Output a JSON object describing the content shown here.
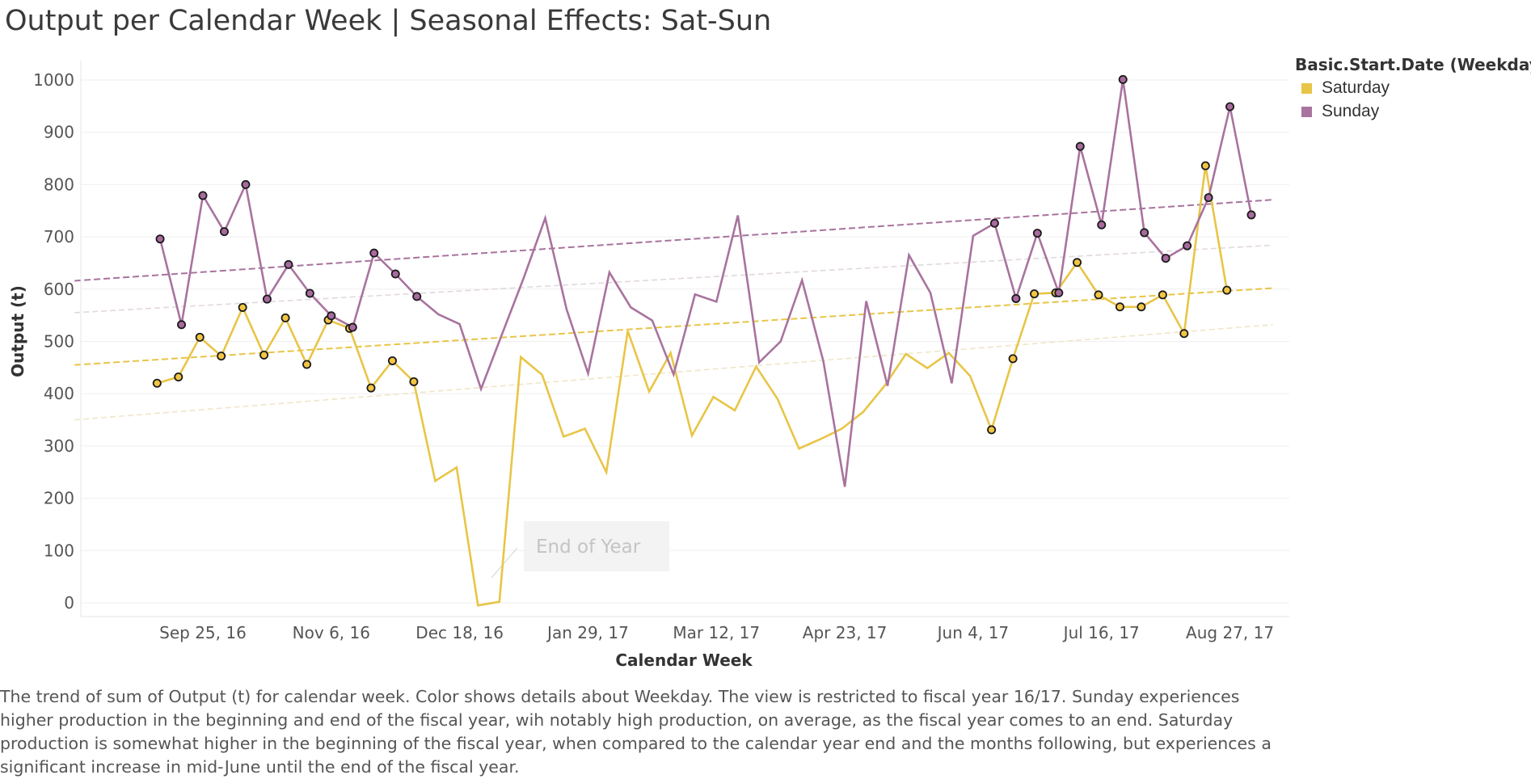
{
  "chart_data": {
    "type": "line",
    "title": "Output per Calendar Week | Seasonal Effects: Sat-Sun",
    "xlabel": "Calendar Week",
    "ylabel": "Output (t)",
    "ylim": [
      0,
      1000
    ],
    "y_ticks": [
      0,
      100,
      200,
      300,
      400,
      500,
      600,
      700,
      800,
      900,
      1000
    ],
    "x_tick_labels": [
      "Sep 25, 16",
      "Nov 6, 16",
      "Dec 18, 16",
      "Jan 29, 17",
      "Mar 12, 17",
      "Apr 23, 17",
      "Jun 4, 17",
      "Jul 16, 17",
      "Aug 27, 17"
    ],
    "x_start": "2016-09-04",
    "x_end": "2017-09-03",
    "grid": "horizontal",
    "legend": {
      "title": "Basic.Start.Date (Weekdays)",
      "position": "top-right",
      "entries": [
        "Saturday",
        "Sunday"
      ]
    },
    "annotation": "End of Year",
    "series": [
      {
        "name": "Saturday",
        "color": "#E8C547",
        "marker_color": "#F2C542",
        "trend_color": "#E8C547",
        "trend_band_color": "#EFE6C8",
        "trend": {
          "start": [
            "2016-08-14",
            455
          ],
          "end": [
            "2017-09-10",
            602
          ]
        },
        "trend_band_lower": {
          "start": [
            "2016-08-14",
            350
          ],
          "end": [
            "2017-09-10",
            532
          ]
        },
        "points": [
          {
            "x": "2016-09-10",
            "y": 420,
            "marker": true
          },
          {
            "x": "2016-09-17",
            "y": 432,
            "marker": true
          },
          {
            "x": "2016-09-24",
            "y": 508,
            "marker": true
          },
          {
            "x": "2016-10-01",
            "y": 472,
            "marker": true
          },
          {
            "x": "2016-10-08",
            "y": 565,
            "marker": true
          },
          {
            "x": "2016-10-15",
            "y": 474,
            "marker": true
          },
          {
            "x": "2016-10-22",
            "y": 545,
            "marker": true
          },
          {
            "x": "2016-10-29",
            "y": 456,
            "marker": true
          },
          {
            "x": "2016-11-05",
            "y": 541,
            "marker": true
          },
          {
            "x": "2016-11-12",
            "y": 525,
            "marker": true
          },
          {
            "x": "2016-11-19",
            "y": 411,
            "marker": true
          },
          {
            "x": "2016-11-26",
            "y": 463,
            "marker": true
          },
          {
            "x": "2016-12-03",
            "y": 423,
            "marker": true
          },
          {
            "x": "2016-12-10",
            "y": 233,
            "marker": false
          },
          {
            "x": "2016-12-17",
            "y": 259,
            "marker": false
          },
          {
            "x": "2016-12-24",
            "y": -5,
            "marker": false
          },
          {
            "x": "2016-12-31",
            "y": 2,
            "marker": false
          },
          {
            "x": "2017-01-07",
            "y": 470,
            "marker": false
          },
          {
            "x": "2017-01-14",
            "y": 436,
            "marker": false
          },
          {
            "x": "2017-01-21",
            "y": 318,
            "marker": false
          },
          {
            "x": "2017-01-28",
            "y": 333,
            "marker": false
          },
          {
            "x": "2017-02-04",
            "y": 250,
            "marker": false
          },
          {
            "x": "2017-02-11",
            "y": 520,
            "marker": false
          },
          {
            "x": "2017-02-18",
            "y": 404,
            "marker": false
          },
          {
            "x": "2017-02-25",
            "y": 478,
            "marker": false
          },
          {
            "x": "2017-03-04",
            "y": 320,
            "marker": false
          },
          {
            "x": "2017-03-11",
            "y": 394,
            "marker": false
          },
          {
            "x": "2017-03-18",
            "y": 368,
            "marker": false
          },
          {
            "x": "2017-03-25",
            "y": 452,
            "marker": false
          },
          {
            "x": "2017-04-01",
            "y": 390,
            "marker": false
          },
          {
            "x": "2017-04-08",
            "y": 295,
            "marker": false
          },
          {
            "x": "2017-04-15",
            "y": 313,
            "marker": false
          },
          {
            "x": "2017-04-22",
            "y": 333,
            "marker": false
          },
          {
            "x": "2017-04-29",
            "y": 365,
            "marker": false
          },
          {
            "x": "2017-05-06",
            "y": 415,
            "marker": false
          },
          {
            "x": "2017-05-13",
            "y": 476,
            "marker": false
          },
          {
            "x": "2017-05-20",
            "y": 449,
            "marker": false
          },
          {
            "x": "2017-05-27",
            "y": 478,
            "marker": false
          },
          {
            "x": "2017-06-03",
            "y": 434,
            "marker": false
          },
          {
            "x": "2017-06-10",
            "y": 331,
            "marker": true
          },
          {
            "x": "2017-06-17",
            "y": 467,
            "marker": true
          },
          {
            "x": "2017-06-24",
            "y": 591,
            "marker": true
          },
          {
            "x": "2017-07-01",
            "y": 593,
            "marker": true
          },
          {
            "x": "2017-07-08",
            "y": 651,
            "marker": true
          },
          {
            "x": "2017-07-15",
            "y": 589,
            "marker": true
          },
          {
            "x": "2017-07-22",
            "y": 566,
            "marker": true
          },
          {
            "x": "2017-07-29",
            "y": 566,
            "marker": true
          },
          {
            "x": "2017-08-05",
            "y": 589,
            "marker": true
          },
          {
            "x": "2017-08-12",
            "y": 515,
            "marker": true
          },
          {
            "x": "2017-08-19",
            "y": 836,
            "marker": true
          },
          {
            "x": "2017-08-26",
            "y": 598,
            "marker": true
          }
        ]
      },
      {
        "name": "Sunday",
        "color": "#A8739E",
        "marker_color": "#A86A9E",
        "trend_color": "#A8739E",
        "trend_band_color": "#E2D8E0",
        "trend": {
          "start": [
            "2016-08-14",
            616
          ],
          "end": [
            "2017-09-10",
            771
          ]
        },
        "trend_band_lower": {
          "start": [
            "2016-08-14",
            555
          ],
          "end": [
            "2017-09-10",
            684
          ]
        },
        "points": [
          {
            "x": "2016-09-11",
            "y": 696,
            "marker": true
          },
          {
            "x": "2016-09-18",
            "y": 532,
            "marker": true
          },
          {
            "x": "2016-09-25",
            "y": 779,
            "marker": true
          },
          {
            "x": "2016-10-02",
            "y": 710,
            "marker": true
          },
          {
            "x": "2016-10-09",
            "y": 800,
            "marker": true
          },
          {
            "x": "2016-10-16",
            "y": 581,
            "marker": true
          },
          {
            "x": "2016-10-23",
            "y": 647,
            "marker": true
          },
          {
            "x": "2016-10-30",
            "y": 592,
            "marker": true
          },
          {
            "x": "2016-11-06",
            "y": 549,
            "marker": true
          },
          {
            "x": "2016-11-13",
            "y": 527,
            "marker": true
          },
          {
            "x": "2016-11-20",
            "y": 669,
            "marker": true
          },
          {
            "x": "2016-11-27",
            "y": 629,
            "marker": true
          },
          {
            "x": "2016-12-04",
            "y": 586,
            "marker": true
          },
          {
            "x": "2016-12-11",
            "y": 552,
            "marker": false
          },
          {
            "x": "2016-12-18",
            "y": 533,
            "marker": false
          },
          {
            "x": "2016-12-25",
            "y": 409,
            "marker": false
          },
          {
            "x": "2017-01-01",
            "y": 516,
            "marker": false
          },
          {
            "x": "2017-01-08",
            "y": 622,
            "marker": false
          },
          {
            "x": "2017-01-15",
            "y": 736,
            "marker": false
          },
          {
            "x": "2017-01-22",
            "y": 561,
            "marker": false
          },
          {
            "x": "2017-01-29",
            "y": 439,
            "marker": false
          },
          {
            "x": "2017-02-05",
            "y": 632,
            "marker": false
          },
          {
            "x": "2017-02-12",
            "y": 565,
            "marker": false
          },
          {
            "x": "2017-02-19",
            "y": 540,
            "marker": false
          },
          {
            "x": "2017-02-26",
            "y": 437,
            "marker": false
          },
          {
            "x": "2017-03-05",
            "y": 590,
            "marker": false
          },
          {
            "x": "2017-03-12",
            "y": 576,
            "marker": false
          },
          {
            "x": "2017-03-19",
            "y": 741,
            "marker": false
          },
          {
            "x": "2017-03-26",
            "y": 460,
            "marker": false
          },
          {
            "x": "2017-04-02",
            "y": 500,
            "marker": false
          },
          {
            "x": "2017-04-09",
            "y": 617,
            "marker": false
          },
          {
            "x": "2017-04-16",
            "y": 462,
            "marker": false
          },
          {
            "x": "2017-04-23",
            "y": 222,
            "marker": false
          },
          {
            "x": "2017-04-30",
            "y": 577,
            "marker": false
          },
          {
            "x": "2017-05-07",
            "y": 415,
            "marker": false
          },
          {
            "x": "2017-05-14",
            "y": 665,
            "marker": false
          },
          {
            "x": "2017-05-21",
            "y": 593,
            "marker": false
          },
          {
            "x": "2017-05-28",
            "y": 420,
            "marker": false
          },
          {
            "x": "2017-06-04",
            "y": 702,
            "marker": false
          },
          {
            "x": "2017-06-11",
            "y": 726,
            "marker": true
          },
          {
            "x": "2017-06-18",
            "y": 582,
            "marker": true
          },
          {
            "x": "2017-06-25",
            "y": 707,
            "marker": true
          },
          {
            "x": "2017-07-02",
            "y": 593,
            "marker": true
          },
          {
            "x": "2017-07-09",
            "y": 873,
            "marker": true
          },
          {
            "x": "2017-07-16",
            "y": 723,
            "marker": true
          },
          {
            "x": "2017-07-23",
            "y": 1001,
            "marker": true
          },
          {
            "x": "2017-07-30",
            "y": 708,
            "marker": true
          },
          {
            "x": "2017-08-06",
            "y": 659,
            "marker": true
          },
          {
            "x": "2017-08-13",
            "y": 683,
            "marker": true
          },
          {
            "x": "2017-08-20",
            "y": 775,
            "marker": true
          },
          {
            "x": "2017-08-27",
            "y": 949,
            "marker": true
          },
          {
            "x": "2017-09-03",
            "y": 742,
            "marker": true
          }
        ]
      }
    ],
    "caption": "The trend of sum of Output (t) for calendar week.  Color shows details about Weekday. The view is restricted to fiscal year 16/17. Sunday experiences higher production in the beginning and end of the fiscal year, wih notably high production, on average, as the fiscal year comes to an end. Saturday production is somewhat higher in the beginning of the fiscal year, when compared to the calendar year end and the months following, but experiences a significant increase in mid-June until the end of the fiscal year."
  }
}
